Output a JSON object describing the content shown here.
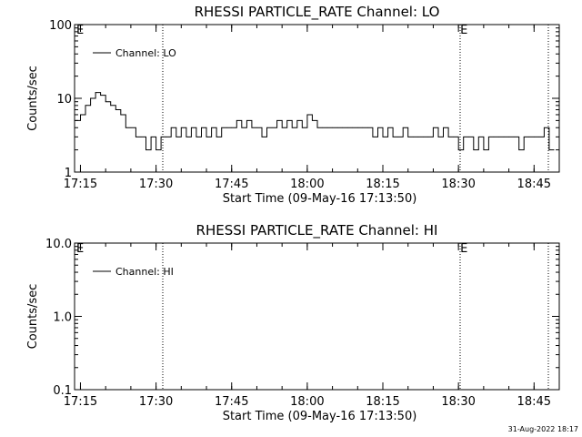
{
  "footer_timestamp": "31-Aug-2022 18:17",
  "chart_data": [
    {
      "type": "line",
      "title": "RHESSI PARTICLE_RATE Channel: LO",
      "xlabel": "Start Time (09-May-16 17:13:50)",
      "ylabel": "Counts/sec",
      "y_scale": "log",
      "ylim": [
        1,
        100
      ],
      "xlim": [
        "17:13:50",
        "18:50:00"
      ],
      "x_tick_labels": [
        "17:15",
        "17:30",
        "17:45",
        "18:00",
        "18:15",
        "18:30",
        "18:45"
      ],
      "y_tick_labels": [
        "1",
        "10",
        "100"
      ],
      "y_tick_values": [
        1,
        10,
        100
      ],
      "legend": {
        "placement": "top-left"
      },
      "annotations": [
        {
          "text": "E",
          "x": "17:13:50"
        },
        {
          "text": "E",
          "x": "18:30:00"
        }
      ],
      "event_markers_x": [
        "17:31:20",
        "18:30:20",
        "18:47:50"
      ],
      "series": [
        {
          "name": "Channel: LO",
          "x": [
            "17:14:00",
            "17:15:00",
            "17:16:00",
            "17:17:00",
            "17:18:00",
            "17:19:00",
            "17:20:00",
            "17:21:00",
            "17:22:00",
            "17:23:00",
            "17:24:00",
            "17:25:00",
            "17:26:00",
            "17:27:00",
            "17:28:00",
            "17:29:00",
            "17:30:00",
            "17:31:00",
            "17:32:00",
            "17:33:00",
            "17:34:00",
            "17:35:00",
            "17:36:00",
            "17:37:00",
            "17:38:00",
            "17:39:00",
            "17:40:00",
            "17:41:00",
            "17:42:00",
            "17:43:00",
            "17:44:00",
            "17:45:00",
            "17:46:00",
            "17:47:00",
            "17:48:00",
            "17:49:00",
            "17:50:00",
            "17:51:00",
            "17:52:00",
            "17:53:00",
            "17:54:00",
            "17:55:00",
            "17:56:00",
            "17:57:00",
            "17:58:00",
            "17:59:00",
            "18:00:00",
            "18:01:00",
            "18:02:00",
            "18:03:00",
            "18:04:00",
            "18:05:00",
            "18:06:00",
            "18:07:00",
            "18:08:00",
            "18:09:00",
            "18:10:00",
            "18:11:00",
            "18:12:00",
            "18:13:00",
            "18:14:00",
            "18:15:00",
            "18:16:00",
            "18:17:00",
            "18:18:00",
            "18:19:00",
            "18:20:00",
            "18:21:00",
            "18:22:00",
            "18:23:00",
            "18:24:00",
            "18:25:00",
            "18:26:00",
            "18:27:00",
            "18:28:00",
            "18:29:00",
            "18:30:00",
            "18:31:00",
            "18:32:00",
            "18:33:00",
            "18:34:00",
            "18:35:00",
            "18:36:00",
            "18:37:00",
            "18:38:00",
            "18:39:00",
            "18:40:00",
            "18:41:00",
            "18:42:00",
            "18:43:00",
            "18:44:00",
            "18:45:00",
            "18:46:00",
            "18:47:00",
            "18:48:00"
          ],
          "values": [
            5,
            6,
            8,
            10,
            12,
            11,
            9,
            8,
            7,
            6,
            4,
            4,
            3,
            3,
            2,
            3,
            2,
            3,
            3,
            4,
            3,
            4,
            3,
            4,
            3,
            4,
            3,
            4,
            3,
            4,
            4,
            4,
            5,
            4,
            5,
            4,
            4,
            3,
            4,
            4,
            5,
            4,
            5,
            4,
            5,
            4,
            6,
            5,
            4,
            4,
            4,
            4,
            4,
            4,
            4,
            4,
            4,
            4,
            4,
            3,
            4,
            3,
            4,
            3,
            3,
            4,
            3,
            3,
            3,
            3,
            3,
            4,
            3,
            4,
            3,
            3,
            2,
            3,
            3,
            2,
            3,
            2,
            3,
            3,
            3,
            3,
            3,
            3,
            2,
            3,
            3,
            3,
            3,
            4,
            2
          ]
        }
      ]
    },
    {
      "type": "line",
      "title": "RHESSI PARTICLE_RATE Channel: HI",
      "xlabel": "Start Time (09-May-16 17:13:50)",
      "ylabel": "Counts/sec",
      "y_scale": "log",
      "ylim": [
        0.1,
        10.0
      ],
      "xlim": [
        "17:13:50",
        "18:50:00"
      ],
      "x_tick_labels": [
        "17:15",
        "17:30",
        "17:45",
        "18:00",
        "18:15",
        "18:30",
        "18:45"
      ],
      "y_tick_labels": [
        "0.1",
        "1.0",
        "10.0"
      ],
      "y_tick_values": [
        0.1,
        1.0,
        10.0
      ],
      "legend": {
        "placement": "top-left"
      },
      "annotations": [
        {
          "text": "E",
          "x": "17:13:50"
        },
        {
          "text": "E",
          "x": "18:30:00"
        }
      ],
      "event_markers_x": [
        "17:31:20",
        "18:30:20",
        "18:47:50"
      ],
      "series": [
        {
          "name": "Channel: HI",
          "x": [],
          "values": []
        }
      ]
    }
  ]
}
